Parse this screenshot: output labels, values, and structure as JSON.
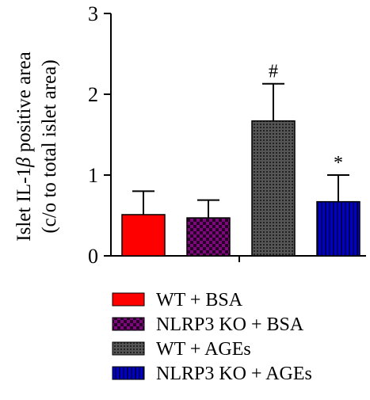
{
  "chart_data": {
    "type": "bar",
    "ylabel_line1": "Islet IL-1",
    "ylabel_beta": "β",
    "ylabel_line1_tail": " positive area",
    "ylabel_line2": "(c/o to total islet area)",
    "ylim": [
      0,
      3
    ],
    "yticks": [
      "0",
      "1",
      "2",
      "3"
    ],
    "grid": false,
    "legend_position": "bottom",
    "series": [
      {
        "name": "WT + BSA",
        "value": 0.51,
        "error": 0.29,
        "annotation": "",
        "color": "#ff0000",
        "pattern": "solid"
      },
      {
        "name": "NLRP3 KO + BSA",
        "value": 0.47,
        "error": 0.22,
        "annotation": "",
        "color": "#800080",
        "pattern": "checker"
      },
      {
        "name": "WT + AGEs",
        "value": 1.67,
        "error": 0.46,
        "annotation": "#",
        "color": "#404040",
        "pattern": "dots"
      },
      {
        "name": "NLRP3 KO + AGEs",
        "value": 0.67,
        "error": 0.33,
        "annotation": "*",
        "color": "#0000c8",
        "pattern": "vstripes"
      }
    ]
  }
}
